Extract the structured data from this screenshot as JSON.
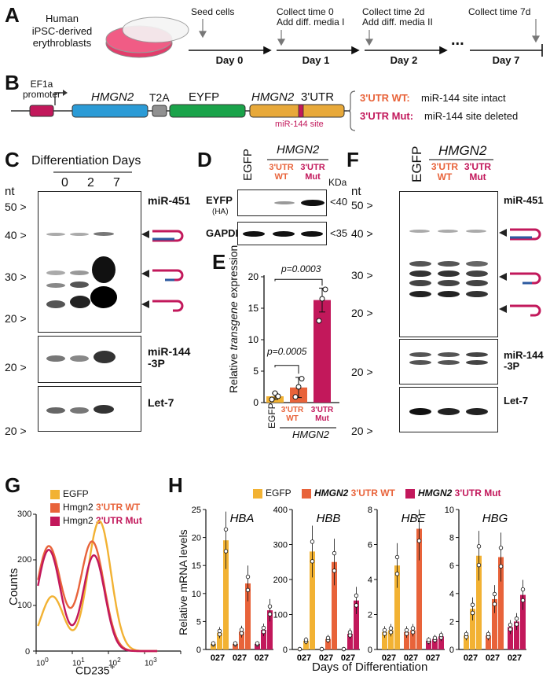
{
  "colors": {
    "wt": "#e8633a",
    "mut": "#c2185b",
    "egfp": "#f2b233",
    "ef1a": "#c2185b",
    "hmgn2": "#2b9bd6",
    "t2a": "#909090",
    "eyfp": "#1aa34a",
    "utr": "#e8a93a",
    "rna_blue": "#2c5aa0"
  },
  "panelA": {
    "label": "A",
    "cells": "Human\niPSC-derived\nerythroblasts",
    "steps": [
      {
        "top": "Seed cells",
        "day": "Day 0"
      },
      {
        "top": "Collect time 0\nAdd diff. media I",
        "day": "Day 1"
      },
      {
        "top": "Collect time 2d\nAdd diff. media II",
        "day": "Day 2"
      },
      {
        "top": "Collect time 7d",
        "day": "Day 7"
      }
    ],
    "dots": "..."
  },
  "panelB": {
    "label": "B",
    "promoter": "EF1a\npromoter",
    "gene1": "HMGN2",
    "t2a": "T2A",
    "eyfp": "EYFP",
    "gene2": "HMGN2",
    "utr": "3'UTR",
    "site": "miR-144 site",
    "wt_label": "3'UTR WT:",
    "wt_text": "miR-144 site intact",
    "mut_label": "3'UTR Mut:",
    "mut_text": "miR-144 site deleted"
  },
  "panelC": {
    "label": "C",
    "title": "Differentiation Days",
    "days": [
      "0",
      "2",
      "7"
    ],
    "unit": "nt",
    "markers_top": [
      "50 >",
      "40 >",
      "30 >",
      "20 >"
    ],
    "marker_mid": "20 >",
    "marker_bot": "20 >",
    "probes": [
      "miR-451",
      "miR-144\n-3P",
      "Let-7"
    ]
  },
  "panelD": {
    "label": "D",
    "egfp": "EGFP",
    "gene": "HMGN2",
    "wt": "3'UTR\nWT",
    "mut": "3'UTR\nMut",
    "unit": "KDa",
    "row1": "EYFP",
    "row1_sub": "(HA)",
    "row2": "GAPDH",
    "mw1": "<40",
    "mw2": "<35"
  },
  "panelE": {
    "label": "E",
    "ylabel_pre": "Relative ",
    "ylabel_it": "transgene",
    "ylabel_post": " expression",
    "p1": "p=0.0003",
    "p2": "p=0.0005",
    "xlabels": [
      "EGFP",
      "3'UTR\nWT",
      "3'UTR\nMut"
    ],
    "gene": "HMGN2",
    "chart_data": {
      "type": "bar",
      "categories": [
        "EGFP",
        "3'UTR WT",
        "3'UTR Mut"
      ],
      "values": [
        1.0,
        2.4,
        16.3
      ],
      "errors": [
        0.5,
        1.6,
        1.9
      ],
      "points": [
        [
          0.5,
          1.5,
          1.0
        ],
        [
          0.9,
          2.5,
          3.8
        ],
        [
          13.0,
          16.5,
          18.0
        ]
      ],
      "ylim": [
        0,
        20
      ],
      "yticks": [
        0,
        5,
        10,
        15,
        20
      ]
    }
  },
  "panelF": {
    "label": "F",
    "egfp": "EGFP",
    "gene": "HMGN2",
    "wt": "3'UTR\nWT",
    "mut": "3'UTR\nMut",
    "unit": "nt",
    "markers_top": [
      "50 >",
      "40 >",
      "30 >",
      "20 >"
    ],
    "marker_mid": "20 >",
    "marker_bot": "20 >",
    "probes": [
      "miR-451",
      "miR-144\n-3P",
      "Let-7"
    ]
  },
  "panelG": {
    "label": "G",
    "legend": [
      {
        "pre": "EGFP",
        "suf": ""
      },
      {
        "pre": "Hmgn2 ",
        "suf": "3'UTR WT"
      },
      {
        "pre": "Hmgn2 ",
        "suf": "3'UTR Mut"
      }
    ],
    "ylabel": "Counts",
    "xlabel": "CD235",
    "xsup": "+",
    "yticks": [
      "0",
      "100",
      "200",
      "300"
    ],
    "xticks": [
      "10",
      "10",
      "10",
      "10",
      "10"
    ],
    "xexp": [
      "0",
      "1",
      "2",
      "3"
    ]
  },
  "panelH": {
    "label": "H",
    "legend": [
      {
        "a": "EGFP",
        "b": ""
      },
      {
        "a": "HMGN2 ",
        "b": "3'UTR WT"
      },
      {
        "a": "HMGN2 ",
        "b": "3'UTR Mut"
      }
    ],
    "ylabel": "Relative mRNA levels",
    "xlabel": "Days of Differentiation",
    "days": "0 2 7",
    "chart_data": [
      {
        "type": "bar",
        "title": "HBA",
        "ylim": [
          0,
          25
        ],
        "yticks": [
          0,
          5,
          10,
          15,
          20,
          25
        ],
        "x": [
          "0",
          "2",
          "7"
        ],
        "series": [
          {
            "name": "EGFP",
            "values": [
              1,
              3,
              19.5
            ]
          },
          {
            "name": "HMGN2 3'UTR WT",
            "values": [
              1,
              3.2,
              11.8
            ]
          },
          {
            "name": "HMGN2 3'UTR Mut",
            "values": [
              1,
              3.5,
              7
            ]
          }
        ]
      },
      {
        "type": "bar",
        "title": "HBB",
        "ylim": [
          0,
          400
        ],
        "yticks": [
          0,
          100,
          200,
          300,
          400
        ],
        "x": [
          "0",
          "2",
          "7"
        ],
        "series": [
          {
            "name": "EGFP",
            "values": [
              1,
              25,
              280
            ]
          },
          {
            "name": "HMGN2 3'UTR WT",
            "values": [
              1,
              30,
              250
            ]
          },
          {
            "name": "HMGN2 3'UTR Mut",
            "values": [
              1,
              45,
              140
            ]
          }
        ]
      },
      {
        "type": "bar",
        "title": "HBE",
        "ylim": [
          0,
          8
        ],
        "yticks": [
          0,
          2,
          4,
          6,
          8
        ],
        "x": [
          "0",
          "2",
          "7"
        ],
        "series": [
          {
            "name": "EGFP",
            "values": [
              1,
              1.1,
              4.8
            ]
          },
          {
            "name": "HMGN2 3'UTR WT",
            "values": [
              1,
              1.1,
              6.9
            ]
          },
          {
            "name": "HMGN2 3'UTR Mut",
            "values": [
              0.5,
              0.6,
              0.75
            ]
          }
        ]
      },
      {
        "type": "bar",
        "title": "HBG",
        "ylim": [
          0,
          10
        ],
        "yticks": [
          0,
          2,
          4,
          6,
          8,
          10
        ],
        "x": [
          "0",
          "2",
          "7"
        ],
        "series": [
          {
            "name": "EGFP",
            "values": [
              1,
              2.9,
              6.7
            ]
          },
          {
            "name": "HMGN2 3'UTR WT",
            "values": [
              1,
              3.6,
              6.6
            ]
          },
          {
            "name": "HMGN2 3'UTR Mut",
            "values": [
              1.6,
              2,
              3.9
            ]
          }
        ]
      }
    ]
  }
}
